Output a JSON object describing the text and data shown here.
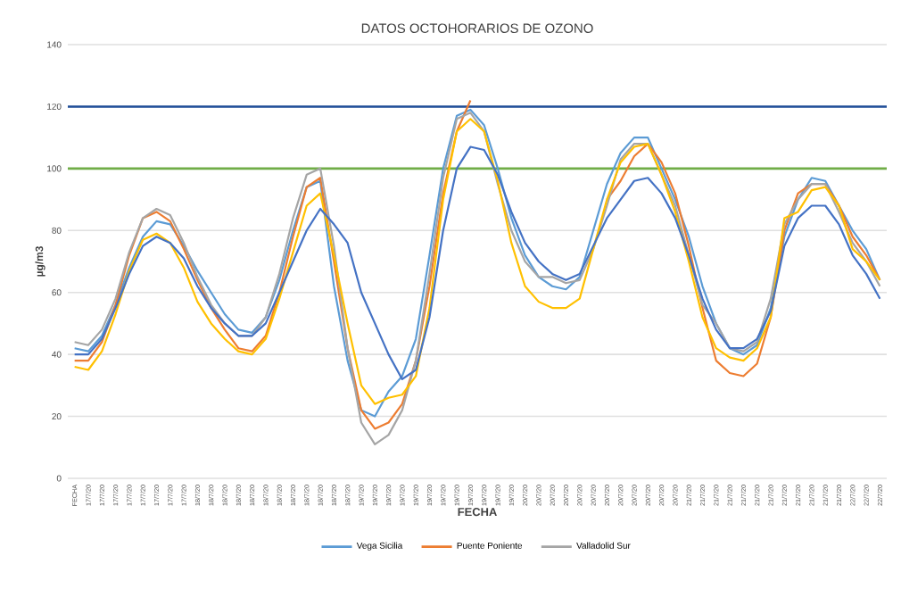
{
  "chart_data": {
    "type": "line",
    "title": "DATOS OCTOHORARIOS DE OZONO",
    "xlabel": "FECHA",
    "ylabel": "µg/m3",
    "categories": [
      "FECHA",
      "17/7/20",
      "17/7/20",
      "17/7/20",
      "17/7/20",
      "17/7/20",
      "17/7/20",
      "17/7/20",
      "17/7/20",
      "18/7/20",
      "18/7/20",
      "18/7/20",
      "18/7/20",
      "18/7/20",
      "18/7/20",
      "18/7/20",
      "18/7/20",
      "18/7/20",
      "18/7/20",
      "18/7/20",
      "18/7/20",
      "19/7/20",
      "19/7/20",
      "19/7/20",
      "19/7/20",
      "19/7/20",
      "19/7/20",
      "19/7/20",
      "19/7/20",
      "19/7/20",
      "19/7/20",
      "19/7/20",
      "19/7/20",
      "20/7/20",
      "20/7/20",
      "20/7/20",
      "20/7/20",
      "20/7/20",
      "20/7/20",
      "20/7/20",
      "20/7/20",
      "20/7/20",
      "20/7/20",
      "20/7/20",
      "20/7/20",
      "21/7/20",
      "21/7/20",
      "21/7/20",
      "21/7/20",
      "21/7/20",
      "21/7/20",
      "21/7/20",
      "21/7/20",
      "21/7/20",
      "21/7/20",
      "21/7/20",
      "21/7/20",
      "22/7/20",
      "22/7/20",
      "22/7/20"
    ],
    "series": [
      {
        "name": "Vega Sicilia",
        "color": "#5b9bd5",
        "values": [
          42,
          41,
          46,
          56,
          68,
          78,
          83,
          82,
          75,
          67,
          60,
          53,
          48,
          47,
          52,
          64,
          80,
          94,
          96,
          62,
          38,
          22,
          20,
          28,
          33,
          45,
          72,
          100,
          117,
          119,
          114,
          100,
          84,
          72,
          65,
          62,
          61,
          65,
          80,
          95,
          105,
          110,
          110,
          100,
          90,
          78,
          62,
          50,
          42,
          40,
          43,
          55,
          78,
          90,
          97,
          96,
          88,
          80,
          74,
          64
        ]
      },
      {
        "name": "Puente Poniente",
        "color": "#ed7d31",
        "values": [
          38,
          38,
          44,
          56,
          72,
          84,
          86,
          83,
          74,
          64,
          55,
          48,
          42,
          41,
          46,
          60,
          78,
          94,
          97,
          70,
          42,
          22,
          16,
          18,
          24,
          38,
          62,
          92,
          112,
          122,
          null,
          null,
          null,
          null,
          null,
          null,
          null,
          null,
          null,
          90,
          96,
          104,
          108,
          102,
          92,
          75,
          55,
          38,
          34,
          33,
          37,
          52,
          80,
          92,
          95,
          95,
          88,
          78,
          72,
          64
        ]
      },
      {
        "name": "Valladolid Sur",
        "color": "#a5a5a5",
        "values": [
          44,
          43,
          48,
          58,
          73,
          84,
          87,
          85,
          76,
          65,
          56,
          50,
          46,
          46,
          52,
          66,
          84,
          98,
          100,
          75,
          42,
          18,
          11,
          14,
          22,
          38,
          66,
          97,
          116,
          118,
          112,
          95,
          80,
          70,
          65,
          65,
          63,
          64,
          74,
          88,
          103,
          108,
          108,
          98,
          88,
          72,
          56,
          50,
          42,
          41,
          44,
          58,
          82,
          90,
          95,
          95,
          86,
          76,
          70,
          62
        ]
      },
      {
        "color": "#ffc000",
        "values": [
          36,
          35,
          41,
          53,
          67,
          77,
          79,
          76,
          68,
          57,
          50,
          45,
          41,
          40,
          45,
          58,
          73,
          88,
          92,
          72,
          50,
          30,
          24,
          26,
          27,
          33,
          55,
          90,
          112,
          116,
          112,
          96,
          76,
          62,
          57,
          55,
          55,
          58,
          74,
          90,
          102,
          107,
          108,
          98,
          86,
          70,
          52,
          42,
          39,
          38,
          42,
          52,
          84,
          86,
          93,
          94,
          88,
          74,
          70,
          64
        ]
      },
      {
        "color": "#4472c4",
        "values": [
          40,
          40,
          45,
          55,
          66,
          75,
          78,
          76,
          71,
          62,
          55,
          50,
          46,
          46,
          50,
          60,
          70,
          80,
          87,
          82,
          76,
          60,
          50,
          40,
          32,
          35,
          52,
          80,
          100,
          107,
          106,
          98,
          86,
          76,
          70,
          66,
          64,
          66,
          75,
          84,
          90,
          96,
          97,
          92,
          84,
          72,
          58,
          48,
          42,
          42,
          45,
          54,
          75,
          84,
          88,
          88,
          82,
          72,
          66,
          58
        ]
      }
    ],
    "ref_lines": [
      {
        "axis": "y",
        "value": 120,
        "color": "#1f4e99"
      },
      {
        "axis": "y",
        "value": 100,
        "color": "#70ad47"
      }
    ],
    "ylim": [
      0,
      140
    ],
    "yticks": [
      0,
      20,
      40,
      60,
      80,
      100,
      120,
      140
    ],
    "grid": "y",
    "legend": "bottom",
    "marker": "none",
    "line_style": "solid"
  }
}
